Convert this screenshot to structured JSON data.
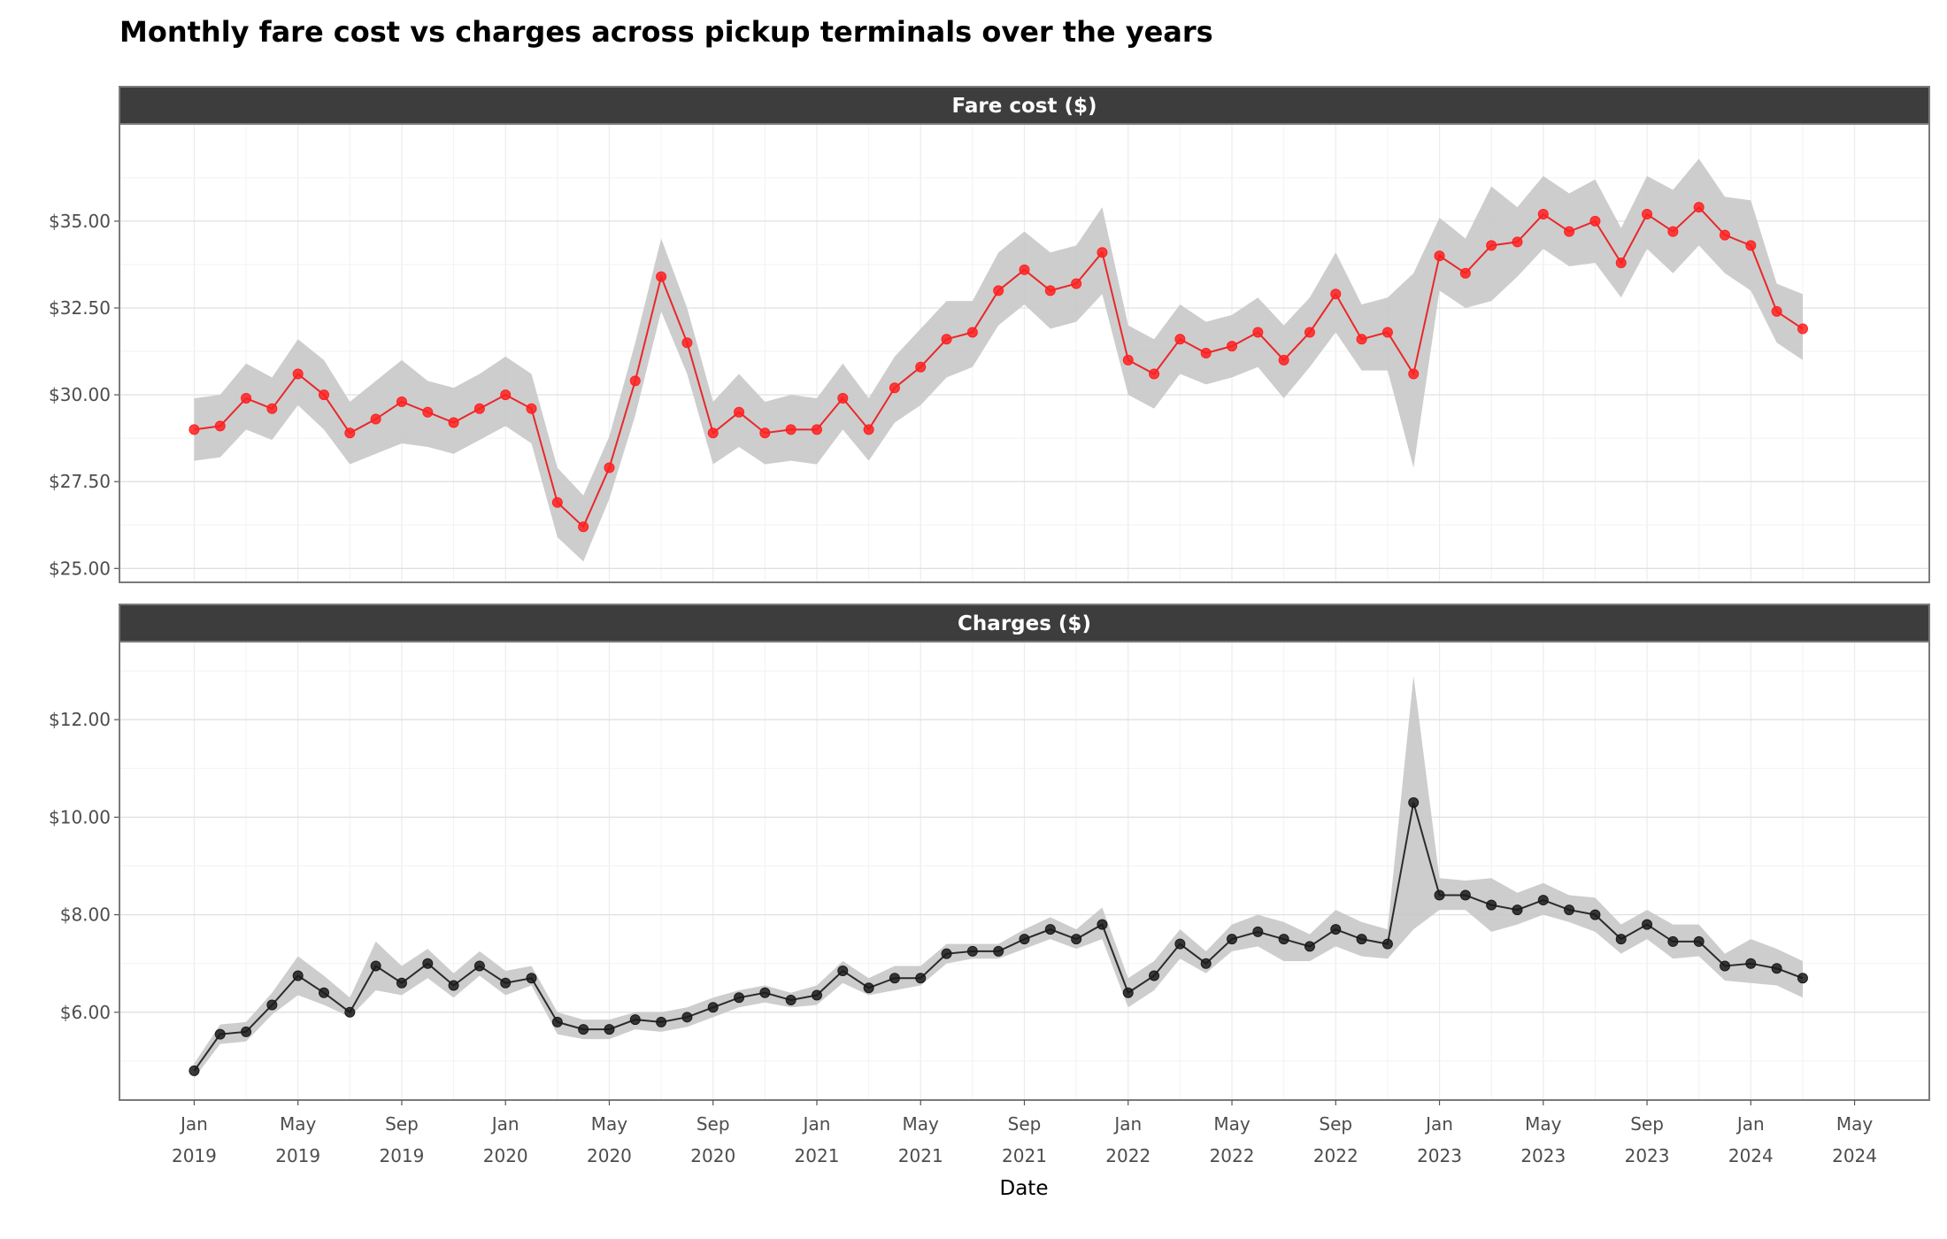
{
  "chart_data": {
    "type": "line",
    "title": "Monthly fare cost vs charges across pickup terminals over the years",
    "xlabel": "Date",
    "x_ticks": [
      {
        "month": "Jan",
        "year": "2019",
        "date": "2019-01"
      },
      {
        "month": "May",
        "year": "2019",
        "date": "2019-05"
      },
      {
        "month": "Sep",
        "year": "2019",
        "date": "2019-09"
      },
      {
        "month": "Jan",
        "year": "2020",
        "date": "2020-01"
      },
      {
        "month": "May",
        "year": "2020",
        "date": "2020-05"
      },
      {
        "month": "Sep",
        "year": "2020",
        "date": "2020-09"
      },
      {
        "month": "Jan",
        "year": "2021",
        "date": "2021-01"
      },
      {
        "month": "May",
        "year": "2021",
        "date": "2021-05"
      },
      {
        "month": "Sep",
        "year": "2021",
        "date": "2021-09"
      },
      {
        "month": "Jan",
        "year": "2022",
        "date": "2022-01"
      },
      {
        "month": "May",
        "year": "2022",
        "date": "2022-05"
      },
      {
        "month": "Sep",
        "year": "2022",
        "date": "2022-09"
      },
      {
        "month": "Jan",
        "year": "2023",
        "date": "2023-01"
      },
      {
        "month": "May",
        "year": "2023",
        "date": "2023-05"
      },
      {
        "month": "Sep",
        "year": "2023",
        "date": "2023-09"
      },
      {
        "month": "Jan",
        "year": "2024",
        "date": "2024-01"
      },
      {
        "month": "May",
        "year": "2024",
        "date": "2024-05"
      }
    ],
    "x": [
      "2019-01",
      "2019-02",
      "2019-03",
      "2019-04",
      "2019-05",
      "2019-06",
      "2019-07",
      "2019-08",
      "2019-09",
      "2019-10",
      "2019-11",
      "2019-12",
      "2020-01",
      "2020-02",
      "2020-03",
      "2020-04",
      "2020-05",
      "2020-06",
      "2020-07",
      "2020-08",
      "2020-09",
      "2020-10",
      "2020-11",
      "2020-12",
      "2021-01",
      "2021-02",
      "2021-03",
      "2021-04",
      "2021-05",
      "2021-06",
      "2021-07",
      "2021-08",
      "2021-09",
      "2021-10",
      "2021-11",
      "2021-12",
      "2022-01",
      "2022-02",
      "2022-03",
      "2022-04",
      "2022-05",
      "2022-06",
      "2022-07",
      "2022-08",
      "2022-09",
      "2022-10",
      "2022-11",
      "2022-12",
      "2023-01",
      "2023-02",
      "2023-03",
      "2023-04",
      "2023-05",
      "2023-06",
      "2023-07",
      "2023-08",
      "2023-09",
      "2023-10",
      "2023-11",
      "2023-12",
      "2024-01",
      "2024-02",
      "2024-03"
    ],
    "panels": [
      {
        "strip_label": "Fare cost ($)",
        "line_color": "#e8282b",
        "point_color": "#ff2020",
        "band_color": "#c8c8c8",
        "ylim": [
          24.6,
          37.8
        ],
        "y_ticks": [
          25.0,
          27.5,
          30.0,
          32.5,
          35.0
        ],
        "y_tick_labels": [
          "$25.00",
          "$27.50",
          "$30.00",
          "$32.50",
          "$35.00"
        ],
        "values": [
          29.0,
          29.1,
          29.9,
          29.6,
          30.6,
          30.0,
          28.9,
          29.3,
          29.8,
          29.5,
          29.2,
          29.6,
          30.0,
          29.6,
          26.9,
          26.2,
          27.9,
          30.4,
          33.4,
          31.5,
          28.9,
          29.5,
          28.9,
          29.0,
          29.0,
          29.9,
          29.0,
          30.2,
          30.8,
          31.6,
          31.8,
          33.0,
          33.6,
          33.0,
          33.2,
          34.1,
          31.0,
          30.6,
          31.6,
          31.2,
          31.4,
          31.8,
          31.0,
          31.8,
          32.9,
          31.6,
          31.8,
          30.6,
          34.0,
          33.5,
          34.3,
          34.4,
          35.2,
          34.7,
          35.0,
          33.8,
          35.2,
          34.7,
          35.4,
          34.6,
          34.3,
          32.4,
          31.9
        ],
        "lower": [
          28.1,
          28.2,
          29.0,
          28.7,
          29.7,
          29.0,
          28.0,
          28.3,
          28.6,
          28.5,
          28.3,
          28.7,
          29.1,
          28.6,
          25.9,
          25.2,
          27.0,
          29.4,
          32.4,
          30.6,
          28.0,
          28.5,
          28.0,
          28.1,
          28.0,
          29.0,
          28.1,
          29.2,
          29.7,
          30.5,
          30.8,
          32.0,
          32.6,
          31.9,
          32.1,
          32.9,
          30.0,
          29.6,
          30.6,
          30.3,
          30.5,
          30.8,
          29.9,
          30.8,
          31.8,
          30.7,
          30.7,
          27.9,
          33.0,
          32.5,
          32.7,
          33.4,
          34.2,
          33.7,
          33.8,
          32.8,
          34.2,
          33.5,
          34.3,
          33.5,
          33.0,
          31.5,
          31.0
        ],
        "upper": [
          29.9,
          30.0,
          30.9,
          30.5,
          31.6,
          31.0,
          29.8,
          30.4,
          31.0,
          30.4,
          30.2,
          30.6,
          31.1,
          30.6,
          27.9,
          27.1,
          28.8,
          31.5,
          34.5,
          32.5,
          29.8,
          30.6,
          29.8,
          30.0,
          29.9,
          30.9,
          29.9,
          31.1,
          31.9,
          32.7,
          32.7,
          34.1,
          34.7,
          34.1,
          34.3,
          35.4,
          32.0,
          31.6,
          32.6,
          32.1,
          32.3,
          32.8,
          32.0,
          32.8,
          34.1,
          32.6,
          32.8,
          33.5,
          35.1,
          34.5,
          36.0,
          35.4,
          36.3,
          35.8,
          36.2,
          34.8,
          36.3,
          35.9,
          36.8,
          35.7,
          35.6,
          33.2,
          32.9
        ]
      },
      {
        "strip_label": "Charges ($)",
        "line_color": "#2b2b2b",
        "point_color": "#1a1a1a",
        "band_color": "#c8c8c8",
        "ylim": [
          4.2,
          13.6
        ],
        "y_ticks": [
          6.0,
          8.0,
          10.0,
          12.0
        ],
        "y_tick_labels": [
          "$6.00",
          "$8.00",
          "$10.00",
          "$12.00"
        ],
        "values": [
          4.8,
          5.55,
          5.6,
          6.15,
          6.75,
          6.4,
          6.0,
          6.95,
          6.6,
          7.0,
          6.55,
          6.95,
          6.6,
          6.7,
          5.8,
          5.65,
          5.65,
          5.85,
          5.8,
          5.9,
          6.1,
          6.3,
          6.4,
          6.25,
          6.35,
          6.85,
          6.5,
          6.7,
          6.7,
          7.2,
          7.25,
          7.25,
          7.5,
          7.7,
          7.5,
          7.8,
          6.4,
          6.75,
          7.4,
          7.0,
          7.5,
          7.65,
          7.5,
          7.35,
          7.7,
          7.5,
          7.4,
          10.3,
          8.4,
          8.4,
          8.2,
          8.1,
          8.3,
          8.1,
          8.0,
          7.5,
          7.8,
          7.45,
          7.45,
          6.95,
          7.0,
          6.9,
          6.7
        ],
        "lower": [
          4.65,
          5.35,
          5.4,
          5.95,
          6.35,
          6.15,
          5.9,
          6.45,
          6.35,
          6.7,
          6.3,
          6.75,
          6.35,
          6.55,
          5.55,
          5.45,
          5.45,
          5.65,
          5.6,
          5.7,
          5.9,
          6.1,
          6.2,
          6.1,
          6.15,
          6.6,
          6.35,
          6.45,
          6.55,
          7.0,
          7.1,
          7.1,
          7.3,
          7.5,
          7.3,
          7.5,
          6.1,
          6.45,
          7.1,
          6.8,
          7.25,
          7.35,
          7.05,
          7.05,
          7.35,
          7.15,
          7.1,
          7.7,
          8.1,
          8.1,
          7.65,
          7.8,
          8.0,
          7.85,
          7.65,
          7.2,
          7.5,
          7.1,
          7.15,
          6.65,
          6.6,
          6.55,
          6.3
        ],
        "upper": [
          4.95,
          5.75,
          5.8,
          6.4,
          7.15,
          6.75,
          6.3,
          7.45,
          6.95,
          7.3,
          6.8,
          7.25,
          6.85,
          6.95,
          6.0,
          5.85,
          5.85,
          6.0,
          6.0,
          6.1,
          6.3,
          6.45,
          6.55,
          6.4,
          6.55,
          7.05,
          6.7,
          6.95,
          6.95,
          7.4,
          7.4,
          7.4,
          7.7,
          7.95,
          7.7,
          8.15,
          6.7,
          7.05,
          7.7,
          7.25,
          7.8,
          8.0,
          7.85,
          7.6,
          8.1,
          7.85,
          7.7,
          12.9,
          8.75,
          8.7,
          8.75,
          8.45,
          8.65,
          8.4,
          8.35,
          7.8,
          8.1,
          7.8,
          7.8,
          7.2,
          7.5,
          7.3,
          7.05
        ]
      }
    ]
  }
}
